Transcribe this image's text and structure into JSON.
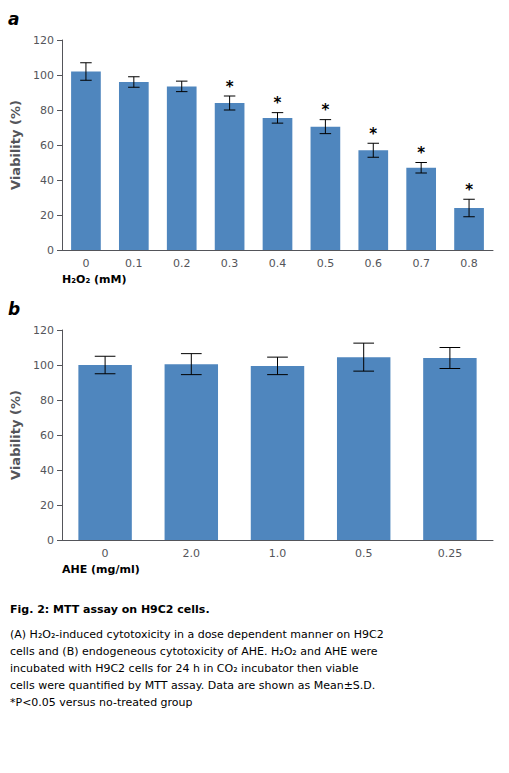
{
  "chart_data": [
    {
      "type": "bar",
      "title": "a",
      "categories": [
        "0",
        "0.1",
        "0.2",
        "0.3",
        "0.4",
        "0.5",
        "0.6",
        "0.7",
        "0.8"
      ],
      "values": [
        102,
        96,
        93.5,
        84,
        75.5,
        70.5,
        57,
        47,
        24
      ],
      "errors": [
        5,
        3,
        3,
        4,
        3,
        4,
        4,
        3,
        5
      ],
      "annotations": [
        {
          "x": "0.3",
          "text": "*"
        },
        {
          "x": "0.4",
          "text": "*"
        },
        {
          "x": "0.5",
          "text": "*"
        },
        {
          "x": "0.6",
          "text": "*"
        },
        {
          "x": "0.7",
          "text": "*"
        },
        {
          "x": "0.8",
          "text": "*"
        }
      ],
      "xlabel": "H₂O₂ (mM)",
      "ylabel": "Viability (%)",
      "ylim": [
        0,
        120
      ],
      "yticks": [
        0,
        20,
        40,
        60,
        80,
        100,
        120
      ],
      "color": "#4f86be",
      "grid": false
    },
    {
      "type": "bar",
      "title": "b",
      "categories": [
        "0",
        "2.0",
        "1.0",
        "0.5",
        "0.25"
      ],
      "values": [
        100,
        100.5,
        99.5,
        104.5,
        104
      ],
      "errors": [
        5,
        6,
        5,
        8,
        6
      ],
      "xlabel": "AHE (mg/ml)",
      "ylabel": "Viability (%)",
      "ylim": [
        0,
        120
      ],
      "yticks": [
        0,
        20,
        40,
        60,
        80,
        100,
        120
      ],
      "color": "#4f86be",
      "grid": false
    }
  ],
  "caption": {
    "title": "Fig. 2: MTT assay on H9C2 cells.",
    "text": "(A) H₂O₂-induced cytotoxicity in a dose dependent manner on H9C2\ncells and (B) endogeneous cytotoxicity of AHE. H₂O₂ and AHE were\nincubated with H9C2 cells for 24 h in CO₂ incubator then viable\ncells were quantified by MTT assay. Data are shown as Mean±S.D.\n*P<0.05 versus no-treated group"
  }
}
